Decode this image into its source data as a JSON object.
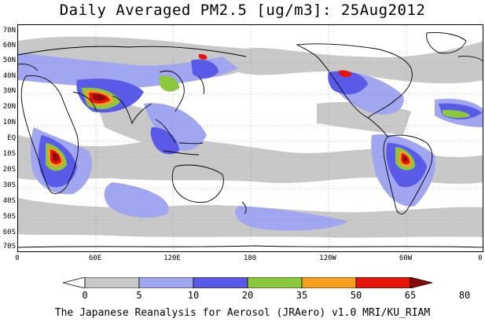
{
  "title": "Daily Averaged PM2.5 [ug/m3]: 25Aug2012",
  "lat_labels": [
    "70N",
    "60N",
    "50N",
    "40N",
    "30N",
    "20N",
    "10N",
    "EQ",
    "10S",
    "20S",
    "30S",
    "40S",
    "50S",
    "60S",
    "70S"
  ],
  "lon_labels": [
    "0",
    "60E",
    "120E",
    "180",
    "120W",
    "60W",
    "0"
  ],
  "colorbar": {
    "levels": [
      "0",
      "5",
      "10",
      "20",
      "35",
      "50",
      "65",
      "80"
    ],
    "colors": [
      "#ffffff",
      "#c8c8c8",
      "#a0a6f0",
      "#5a5ae8",
      "#8cc83c",
      "#f5a01e",
      "#e6140a",
      "#8c0a0a"
    ]
  },
  "footer": "The Japanese Reanalysis for Aerosol (JRAero) v1.0 MRI/KU_RIAM"
}
